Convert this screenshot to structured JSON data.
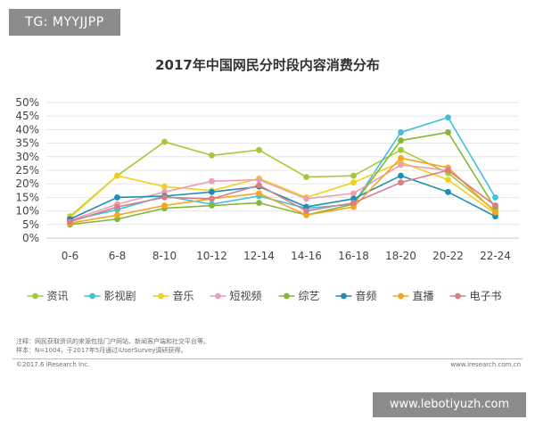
{
  "tag": "TG: MYYJJPP",
  "watermark": "www.lebotiyuzh.com",
  "note_lines": [
    "注释：网民获取资讯的来源包括门户网站、新闻客户端和社交平台等。",
    "样本：N=1004，于2017年5月通过iUserSurvey调研获得。"
  ],
  "footer_left": "©2017.6 iResearch Inc.",
  "footer_right": "www.iresearch.com.cn",
  "chart_data": {
    "type": "line",
    "title": "2017年中国网民分时段内容消费分布",
    "xlabel": "",
    "ylabel": "",
    "categories": [
      "0-6",
      "6-8",
      "8-10",
      "10-12",
      "12-14",
      "14-16",
      "16-18",
      "18-20",
      "20-22",
      "22-24"
    ],
    "ylim": [
      0,
      50
    ],
    "yticks": [
      "0%",
      "5%",
      "10%",
      "15%",
      "20%",
      "25%",
      "30%",
      "35%",
      "40%",
      "45%",
      "50%"
    ],
    "legend_position": "bottom",
    "series": [
      {
        "name": "资讯",
        "color": "#a6c93a",
        "values": [
          8,
          23,
          35.5,
          30.5,
          32.5,
          22.5,
          23,
          32.5,
          24,
          10
        ]
      },
      {
        "name": "影视剧",
        "color": "#3fc1dc",
        "values": [
          6.5,
          10.5,
          15.5,
          12.5,
          15.5,
          11,
          12.5,
          39,
          44.5,
          15
        ]
      },
      {
        "name": "音乐",
        "color": "#f2d01e",
        "values": [
          7.5,
          23,
          19,
          17.5,
          22,
          15,
          20.5,
          28,
          21.5,
          9
        ]
      },
      {
        "name": "短视频",
        "color": "#eaa0b2",
        "values": [
          6.5,
          12.5,
          17,
          21,
          21.5,
          14.5,
          16.5,
          27,
          25,
          12
        ]
      },
      {
        "name": "综艺",
        "color": "#86b735",
        "values": [
          5,
          7,
          11,
          12,
          13,
          8.5,
          12.5,
          36,
          39,
          11
        ]
      },
      {
        "name": "音频",
        "color": "#1d8fb4",
        "values": [
          7,
          15,
          15.5,
          17,
          19,
          11.5,
          14.5,
          23,
          17,
          8
        ]
      },
      {
        "name": "直播",
        "color": "#f5a623",
        "values": [
          5.5,
          8.5,
          12,
          14.5,
          16.5,
          8.5,
          11.5,
          29.5,
          26,
          9.5
        ]
      },
      {
        "name": "电子书",
        "color": "#d97e86",
        "values": [
          6,
          11.5,
          15,
          14.5,
          19.5,
          10,
          13,
          20.5,
          25,
          12
        ]
      }
    ]
  }
}
